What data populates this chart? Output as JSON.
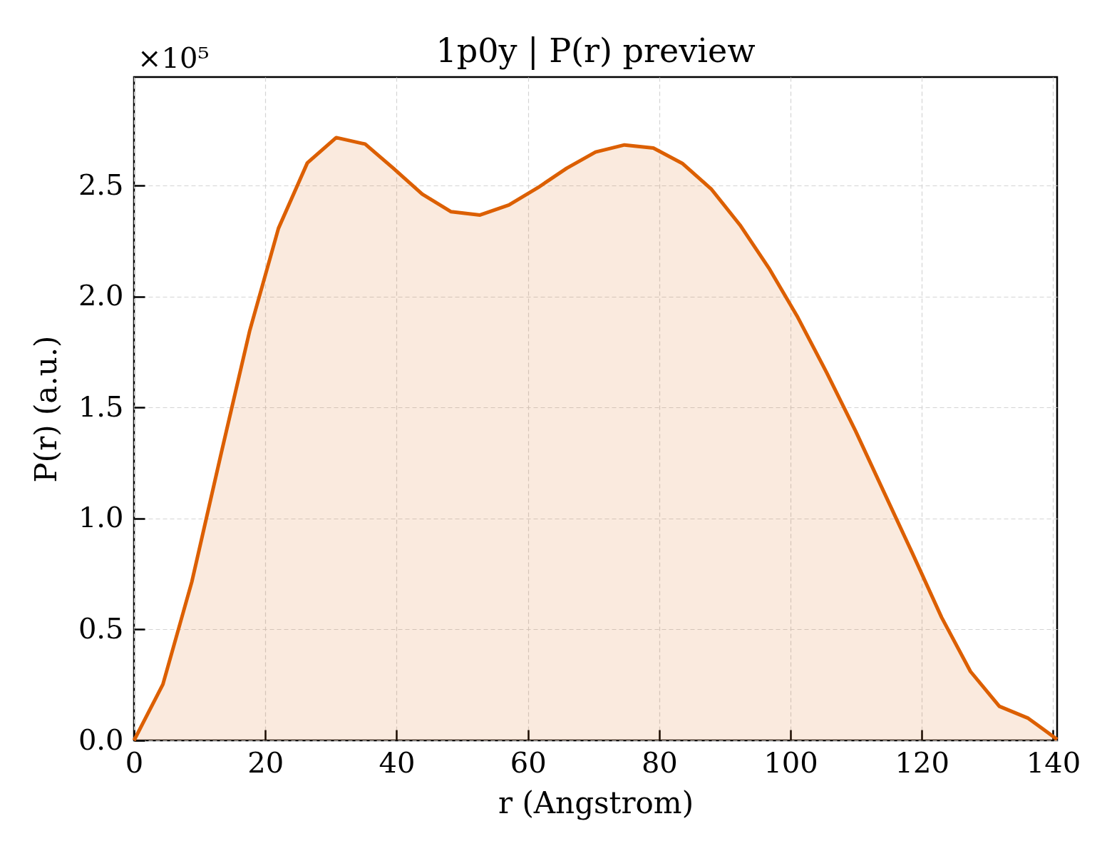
{
  "chart_data": {
    "type": "area",
    "title": "1p0y | P(r) preview",
    "xlabel": "r (Angstrom)",
    "ylabel": "P(r) (a.u.)",
    "annotations": [
      "×10⁵"
    ],
    "x": [
      0,
      4.4,
      8.8,
      13.2,
      17.6,
      22.0,
      26.4,
      30.8,
      35.2,
      39.5,
      43.9,
      48.3,
      52.7,
      57.1,
      61.5,
      65.9,
      70.3,
      74.7,
      79.1,
      83.5,
      87.9,
      92.3,
      96.7,
      101.1,
      105.5,
      109.9,
      114.2,
      118.6,
      123.0,
      127.4,
      131.8,
      136.2,
      140.6
    ],
    "series": [
      {
        "color": "#dc5f00",
        "values": [
          0,
          0.253,
          0.714,
          1.284,
          1.844,
          2.308,
          2.603,
          2.717,
          2.688,
          2.579,
          2.462,
          2.383,
          2.368,
          2.413,
          2.491,
          2.579,
          2.652,
          2.684,
          2.67,
          2.601,
          2.486,
          2.323,
          2.129,
          1.907,
          1.658,
          1.395,
          1.121,
          0.841,
          0.555,
          0.311,
          0.154,
          0.1,
          0.005
        ]
      }
    ],
    "xlim": [
      0,
      140.6
    ],
    "xticks": [
      0,
      20,
      40,
      60,
      80,
      100,
      120,
      140
    ],
    "ylim": [
      0,
      2.99
    ],
    "yticks": [
      {
        "value": 0,
        "label": "0.0"
      },
      0.5,
      {
        "value": 1,
        "label": "1.0"
      },
      1.5,
      {
        "value": 2,
        "label": "2.0"
      },
      2.5
    ],
    "grid": true,
    "line_style": "solid"
  }
}
